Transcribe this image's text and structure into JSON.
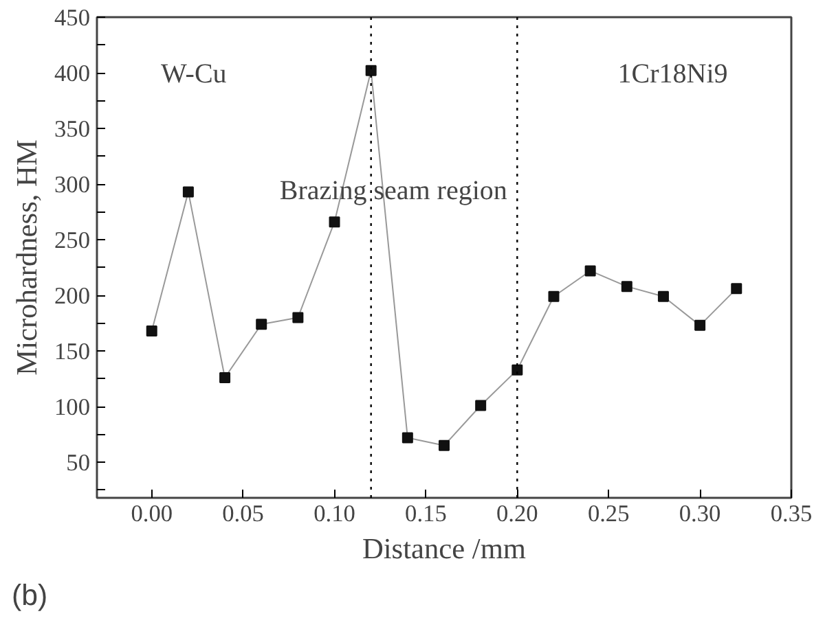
{
  "chart_data": {
    "type": "line",
    "xlabel": "Distance /mm",
    "ylabel": "Microhardness, HM",
    "x": [
      0.0,
      0.02,
      0.04,
      0.06,
      0.08,
      0.1,
      0.12,
      0.14,
      0.16,
      0.18,
      0.2,
      0.22,
      0.24,
      0.26,
      0.28,
      0.3,
      0.32
    ],
    "series": [
      {
        "color": "#999999",
        "values": [
          168,
          293,
          126,
          174,
          180,
          266,
          402,
          72,
          65,
          101,
          133,
          199,
          222,
          208,
          199,
          173,
          206
        ]
      }
    ],
    "marker": "square",
    "xlim": [
      -0.03,
      0.35
    ],
    "xticks": [
      {
        "value": 0.0,
        "label": "0.00"
      },
      {
        "value": 0.05,
        "label": "0.05"
      },
      {
        "value": 0.1,
        "label": "0.10"
      },
      {
        "value": 0.15,
        "label": "0.15"
      },
      {
        "value": 0.2,
        "label": "0.20"
      },
      {
        "value": 0.25,
        "label": "0.25"
      },
      {
        "value": 0.3,
        "label": "0.30"
      },
      {
        "value": 0.35,
        "label": "0.35"
      }
    ],
    "ylim": [
      18,
      450
    ],
    "yticks": [
      {
        "value": 25,
        "label": null
      },
      50,
      {
        "value": 75,
        "label": null
      },
      100,
      {
        "value": 125,
        "label": null
      },
      150,
      {
        "value": 175,
        "label": null
      },
      200,
      {
        "value": 225,
        "label": null
      },
      250,
      {
        "value": 275,
        "label": null
      },
      300,
      {
        "value": 325,
        "label": null
      },
      350,
      {
        "value": 375,
        "label": null
      },
      400,
      {
        "value": 425,
        "label": null
      },
      450
    ],
    "ref_lines": [
      {
        "axis": "x",
        "value": 0.12,
        "line_style": "dotted",
        "color": "#000000"
      },
      {
        "axis": "x",
        "value": 0.2,
        "line_style": "dotted",
        "color": "#000000"
      }
    ],
    "annotations": [
      "W-Cu",
      "Brazing seam region",
      "1Cr18Ni9",
      "(b)"
    ],
    "grid": false
  }
}
